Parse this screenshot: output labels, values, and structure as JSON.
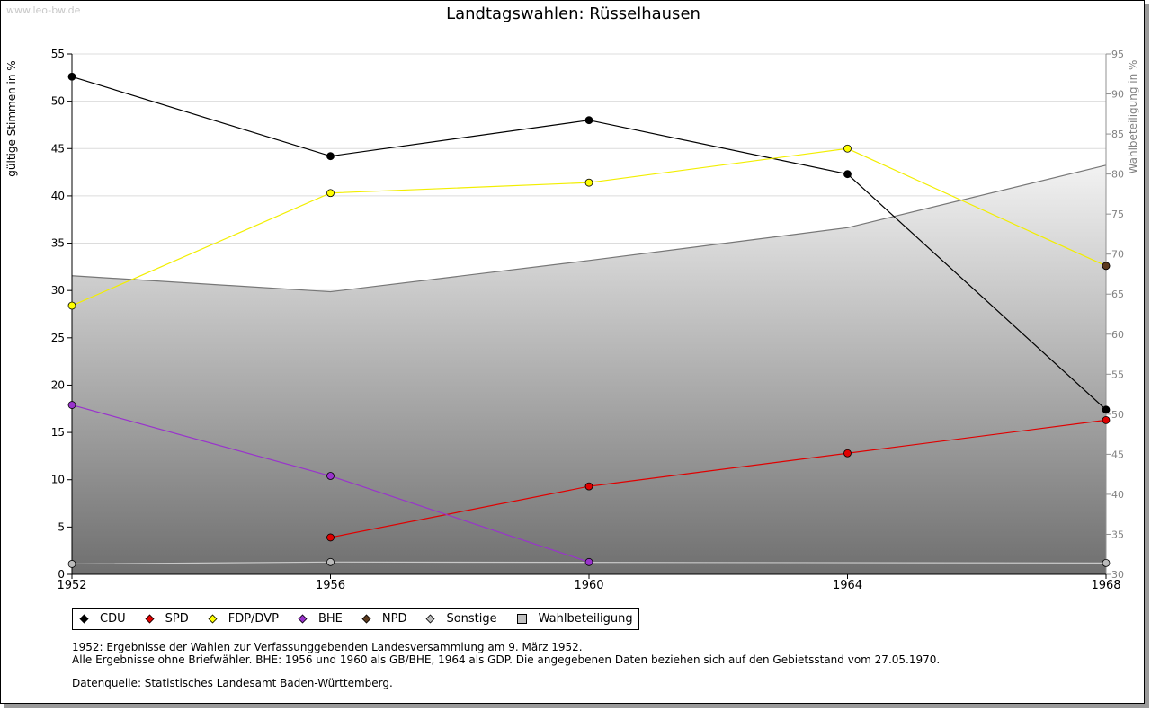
{
  "watermark": "www.leo-bw.de",
  "colors": {
    "CDU": "#000000",
    "SPD": "#e00000",
    "FDP/DVP": "#ffff00",
    "BHE": "#9933cc",
    "NPD": "#5c3a1e",
    "Sonstige": "#bbbbbb",
    "Wahlbeteiligung": "#c0c0c0"
  },
  "chart_data": {
    "type": "line",
    "title": "Landtagswahlen: Rüsselhausen",
    "xlabel": "",
    "ylabel": "gültige Stimmen in %",
    "ylabel_right": "Wahlbeteiligung in %",
    "ylim": [
      0,
      55
    ],
    "ylim_right": [
      30,
      95
    ],
    "yticks": [
      0,
      5,
      10,
      15,
      20,
      25,
      30,
      35,
      40,
      45,
      50,
      55
    ],
    "yticks_right": [
      30,
      35,
      40,
      45,
      50,
      55,
      60,
      65,
      70,
      75,
      80,
      85,
      90,
      95
    ],
    "x": [
      1952,
      1956,
      1960,
      1964,
      1968
    ],
    "grid": true,
    "series": [
      {
        "name": "CDU",
        "values": [
          52.6,
          44.2,
          48.0,
          42.3,
          17.4
        ]
      },
      {
        "name": "SPD",
        "values": [
          null,
          3.9,
          9.3,
          12.8,
          16.3
        ]
      },
      {
        "name": "FDP/DVP",
        "values": [
          28.4,
          40.3,
          41.4,
          45.0,
          32.6
        ]
      },
      {
        "name": "BHE",
        "values": [
          17.9,
          10.4,
          1.3,
          null,
          null
        ]
      },
      {
        "name": "NPD",
        "values": [
          null,
          null,
          null,
          null,
          32.6
        ]
      },
      {
        "name": "Sonstige",
        "values": [
          1.1,
          1.3,
          null,
          null,
          1.2
        ]
      },
      {
        "name": "Wahlbeteiligung",
        "axis": "right",
        "type": "area",
        "values": [
          67.3,
          65.3,
          69.2,
          73.3,
          81.1
        ]
      }
    ],
    "legend_position": "bottom-left"
  },
  "legend": [
    "CDU",
    "SPD",
    "FDP/DVP",
    "BHE",
    "NPD",
    "Sonstige",
    "Wahlbeteiligung"
  ],
  "notes": [
    "1952: Ergebnisse der Wahlen zur Verfassunggebenden Landesversammlung am 9. März 1952.",
    "Alle Ergebnisse ohne Briefwähler. BHE: 1956 und 1960 als GB/BHE, 1964 als GDP. Die angegebenen Daten beziehen sich auf den Gebietsstand vom 27.05.1970."
  ],
  "source": "Datenquelle: Statistisches Landesamt Baden-Württemberg."
}
